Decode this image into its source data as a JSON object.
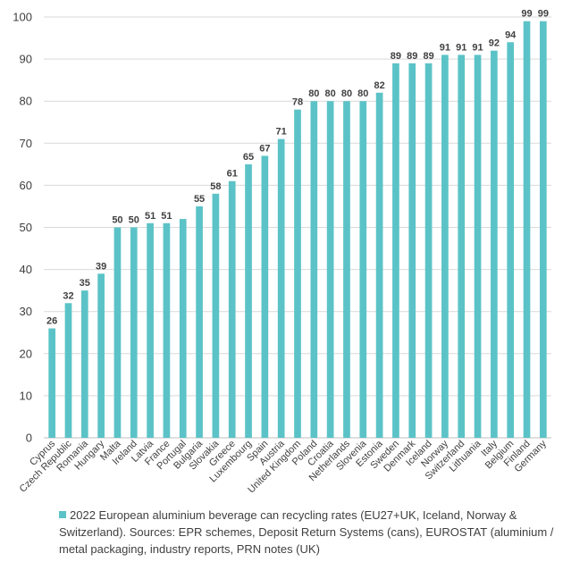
{
  "chart_data": {
    "type": "bar",
    "categories": [
      "Cyprus",
      "Czech Republic",
      "Romania",
      "Hungary",
      "Malta",
      "Ireland",
      "Latvia",
      "France",
      "Portugal",
      "Bulgaria",
      "Slovakia",
      "Greece",
      "Luxembourg",
      "Spain",
      "Austria",
      "United Kingdom",
      "Poland",
      "Croatia",
      "Netherlands",
      "Slovenia",
      "Estonia",
      "Sweden",
      "Denmark",
      "Iceland",
      "Norway",
      "Switzerland",
      "Lithuania",
      "Italy",
      "Belgium",
      "Finland",
      "Germany"
    ],
    "series": [
      {
        "name": "2022 European aluminium beverage can recycling rates (EU27+UK, Iceland, Norway & Switzerland). Sources: EPR schemes, Deposit Return Systems (cans), EUROSTAT (aluminium / metal packaging, industry reports, PRN notes (UK)",
        "values": [
          26,
          32,
          35,
          39,
          50,
          50,
          51,
          51,
          52,
          55,
          58,
          61,
          65,
          67,
          71,
          78,
          80,
          80,
          80,
          80,
          82,
          89,
          89,
          89,
          91,
          91,
          91,
          92,
          94,
          99,
          99
        ]
      }
    ],
    "data_labels": [
      "26",
      "32",
      "35",
      "39",
      "50",
      "50",
      "51",
      "51",
      "",
      "55",
      "58",
      "61",
      "65",
      "67",
      "71",
      "78",
      "80",
      "80",
      "80",
      "80",
      "82",
      "89",
      "89",
      "89",
      "91",
      "91",
      "91",
      "92",
      "94",
      "99",
      "99"
    ],
    "y_ticks": [
      "0",
      "10",
      "20",
      "30",
      "40",
      "50",
      "60",
      "70",
      "80",
      "90",
      "100"
    ],
    "ylim": [
      0,
      100
    ],
    "grid": true,
    "legend_position": "bottom",
    "bar_color": "#5BC3C7",
    "grid_color": "#d9d9d9"
  }
}
